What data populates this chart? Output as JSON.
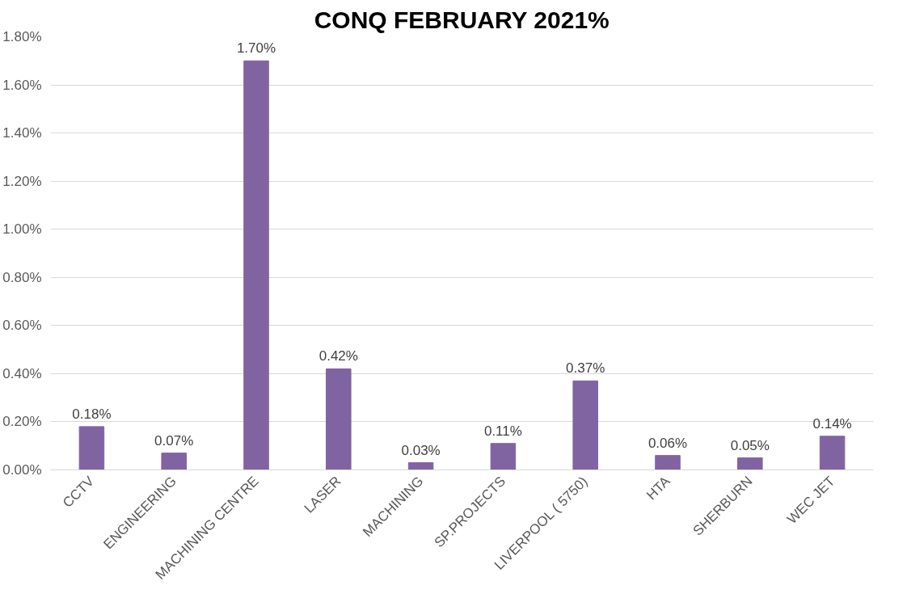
{
  "chart_data": {
    "type": "bar",
    "title": "CONQ FEBRUARY 2021%",
    "categories": [
      "CCTV",
      "ENGINEERING",
      "MACHINING CENTRE",
      "LASER",
      "MACHINING",
      "SP.PROJECTS",
      "LIVERPOOL ( 5750)",
      "HTA",
      "SHERBURN",
      "WEC JET"
    ],
    "values": [
      0.18,
      0.07,
      1.7,
      0.42,
      0.03,
      0.11,
      0.37,
      0.06,
      0.05,
      0.14
    ],
    "value_labels": [
      "0.18%",
      "0.07%",
      "1.70%",
      "0.42%",
      "0.03%",
      "0.11%",
      "0.37%",
      "0.06%",
      "0.05%",
      "0.14%"
    ],
    "color": "#8064a2",
    "ylim": [
      0,
      1.8
    ],
    "yticks": [
      {
        "value": 0,
        "label": "0.00%"
      },
      {
        "value": 0.2,
        "label": "0.20%"
      },
      {
        "value": 0.4,
        "label": "0.40%"
      },
      {
        "value": 0.6,
        "label": "0.60%"
      },
      {
        "value": 0.8,
        "label": "0.80%"
      },
      {
        "value": 1.0,
        "label": "1.00%"
      },
      {
        "value": 1.2,
        "label": "1.20%"
      },
      {
        "value": 1.4,
        "label": "1.40%"
      },
      {
        "value": 1.6,
        "label": "1.60%"
      },
      {
        "value": 1.8,
        "label": "1.80%"
      }
    ],
    "grid": "y"
  }
}
